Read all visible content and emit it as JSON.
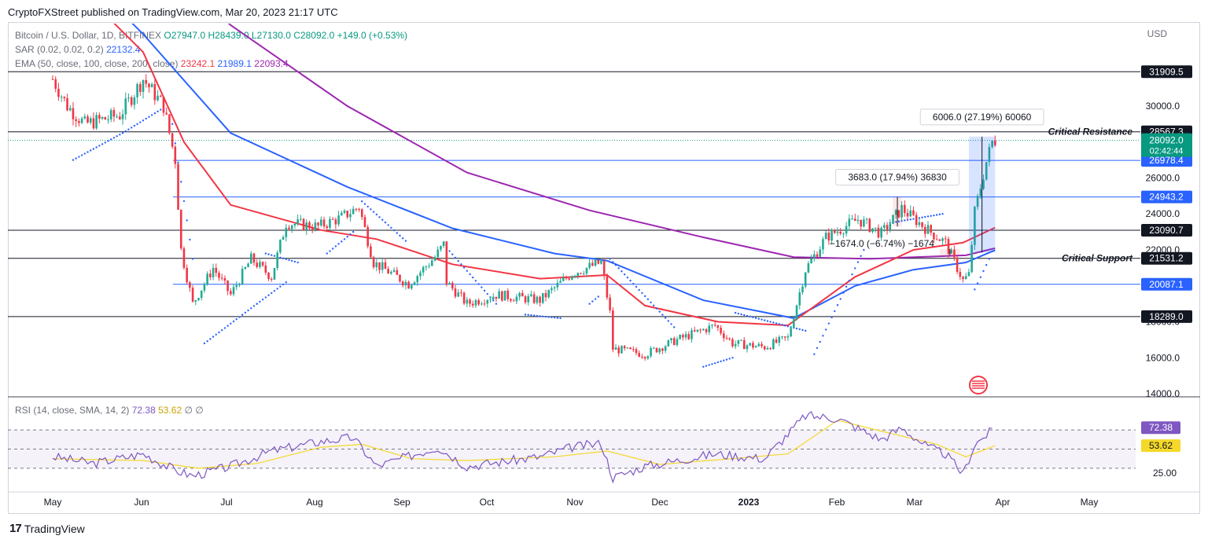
{
  "header": {
    "publisher": "CryptoFXStreet published on TradingView.com, Mar 20, 2023 21:17 UTC"
  },
  "legend": {
    "symbol": "Bitcoin / U.S. Dollar, 1D, BITFINEX",
    "o": "O27947.0",
    "h": "H28439.0",
    "l": "L27130.0",
    "c": "C28092.0",
    "chg": "+149.0 (+0.53%)",
    "sar_label": "SAR (0.02, 0.02, 0.2)",
    "sar_val": "22132.4",
    "ema_label": "EMA (50, close, 100, close, 200, close)",
    "ema50": "23242.1",
    "ema100": "21989.1",
    "ema200": "22093.4",
    "rsi_label": "RSI (14, close, SMA, 14, 2)",
    "rsi_val": "72.38",
    "rsi_sma": "53.62",
    "rsi_tail": "∅ ∅"
  },
  "footer": {
    "brand": "TradingView"
  },
  "colors": {
    "up": "#22ab94",
    "down": "#f23645",
    "ema50": "#f23645",
    "ema100": "#2962ff",
    "ema200": "#9c27b0",
    "sar": "#2962ff",
    "rsi": "#7e57c2",
    "rsi_sma": "#f5d82a",
    "price_badge": "#089981",
    "level_blue": "#2962ff"
  },
  "chart_data": {
    "type": "candlestick",
    "currency": "USD",
    "price_axis": {
      "ticks": [
        14000,
        16000,
        18000,
        20000,
        22000,
        24000,
        26000,
        28000,
        30000
      ],
      "tick_labels": [
        "14000.0",
        "16000.0",
        "18000.0",
        "20000.0",
        "22000.0",
        "24000.0",
        "26000.0",
        "28000.0",
        "30000.0"
      ]
    },
    "time_axis": {
      "labels": [
        "May",
        "Jun",
        "Jul",
        "Aug",
        "Sep",
        "Oct",
        "Nov",
        "Dec",
        "2023",
        "Feb",
        "Mar",
        "Apr",
        "May"
      ]
    },
    "last_price": "28092.0",
    "countdown": "02:42:44",
    "horizontal_levels": [
      {
        "value": 31909.5,
        "label": "31909.5",
        "color": "black"
      },
      {
        "value": 28567.3,
        "label": "28567.3",
        "color": "black",
        "annotation": "Critical Resistance"
      },
      {
        "value": 26978.4,
        "label": "26978.4",
        "color": "blue"
      },
      {
        "value": 24943.2,
        "label": "24943.2",
        "color": "blue"
      },
      {
        "value": 23090.7,
        "label": "23090.7",
        "color": "black"
      },
      {
        "value": 21531.2,
        "label": "21531.2",
        "color": "black",
        "annotation": "Critical Support"
      },
      {
        "value": 20087.1,
        "label": "20087.1",
        "color": "blue"
      },
      {
        "value": 18289.0,
        "label": "18289.0",
        "color": "black"
      }
    ],
    "price_path": [
      [
        "May 1",
        31500
      ],
      [
        "May 6",
        30000
      ],
      [
        "May 12",
        29000
      ],
      [
        "May 24",
        29500
      ],
      [
        "Jun 1",
        31500
      ],
      [
        "Jun 8",
        30000
      ],
      [
        "Jun 12",
        27000
      ],
      [
        "Jun 14",
        22000
      ],
      [
        "Jun 18",
        19000
      ],
      [
        "Jun 25",
        21000
      ],
      [
        "Jul 1",
        19500
      ],
      [
        "Jul 8",
        21500
      ],
      [
        "Jul 15",
        20500
      ],
      [
        "Jul 20",
        23500
      ],
      [
        "Jul 31",
        23300
      ],
      [
        "Aug 8",
        23800
      ],
      [
        "Aug 14",
        24400
      ],
      [
        "Aug 19",
        21300
      ],
      [
        "Aug 31",
        20100
      ],
      [
        "Sep 9",
        21600
      ],
      [
        "Sep 12",
        22300
      ],
      [
        "Sep 13",
        20200
      ],
      [
        "Sep 20",
        19000
      ],
      [
        "Sep 30",
        19500
      ],
      [
        "Oct 15",
        19200
      ],
      [
        "Oct 26",
        20700
      ],
      [
        "Nov 5",
        21300
      ],
      [
        "Nov 8",
        18500
      ],
      [
        "Nov 9",
        16500
      ],
      [
        "Nov 20",
        16200
      ],
      [
        "Dec 1",
        17000
      ],
      [
        "Dec 14",
        17800
      ],
      [
        "Dec 20",
        16800
      ],
      [
        "Dec 31",
        16600
      ],
      [
        "Jan 8",
        17100
      ],
      [
        "Jan 14",
        20900
      ],
      [
        "Jan 21",
        22700
      ],
      [
        "Feb 1",
        23700
      ],
      [
        "Feb 9",
        22900
      ],
      [
        "Feb 16",
        24300
      ],
      [
        "Feb 25",
        23100
      ],
      [
        "Mar 3",
        22400
      ],
      [
        "Mar 9",
        20300
      ],
      [
        "Mar 11",
        20600
      ],
      [
        "Mar 13",
        24100
      ],
      [
        "Mar 17",
        26900
      ],
      [
        "Mar 19",
        28000
      ],
      [
        "Mar 20",
        28092
      ]
    ],
    "ema50": [
      [
        "May 1",
        38000
      ],
      [
        "Jun 1",
        33000
      ],
      [
        "Jun 15",
        28000
      ],
      [
        "Jul 1",
        24500
      ],
      [
        "Aug 1",
        23100
      ],
      [
        "Aug 20",
        22600
      ],
      [
        "Sep 15",
        21200
      ],
      [
        "Oct 15",
        20400
      ],
      [
        "Nov 7",
        20600
      ],
      [
        "Nov 20",
        18900
      ],
      [
        "Dec 15",
        18000
      ],
      [
        "Jan 8",
        17800
      ],
      [
        "Jan 31",
        20500
      ],
      [
        "Feb 20",
        22000
      ],
      [
        "Mar 9",
        22400
      ],
      [
        "Mar 20",
        23242
      ]
    ],
    "ema100": [
      [
        "May 1",
        39000
      ],
      [
        "Jun 1",
        34000
      ],
      [
        "Jul 1",
        28500
      ],
      [
        "Aug 10",
        25500
      ],
      [
        "Sep 15",
        23200
      ],
      [
        "Oct 20",
        21800
      ],
      [
        "Nov 7",
        21400
      ],
      [
        "Dec 10",
        19200
      ],
      [
        "Jan 10",
        18200
      ],
      [
        "Jan 31",
        20000
      ],
      [
        "Feb 20",
        20900
      ],
      [
        "Mar 10",
        21300
      ],
      [
        "Mar 20",
        21989
      ]
    ],
    "ema200": [
      [
        "May 1",
        43000
      ],
      [
        "Jun 1",
        39000
      ],
      [
        "Jul 1",
        34500
      ],
      [
        "Aug 10",
        30000
      ],
      [
        "Sep 20",
        26300
      ],
      [
        "Nov 1",
        24200
      ],
      [
        "Dec 10",
        22700
      ],
      [
        "Jan 10",
        21600
      ],
      [
        "Feb 5",
        21500
      ],
      [
        "Mar 10",
        21700
      ],
      [
        "Mar 20",
        22093
      ]
    ],
    "sar_segments": [
      [
        [
          "May 8",
          27000
        ],
        [
          "May 25",
          28500
        ],
        [
          "Jun 7",
          29800
        ]
      ],
      [
        [
          "Jun 11",
          29000
        ],
        [
          "Jun 18",
          21500
        ]
      ],
      [
        [
          "Jun 22",
          16800
        ],
        [
          "Jul 10",
          19000
        ],
        [
          "Jul 20",
          20200
        ]
      ],
      [
        [
          "Jul 13",
          21800
        ],
        [
          "Jul 24",
          21300
        ]
      ],
      [
        [
          "Aug 3",
          21800
        ],
        [
          "Aug 12",
          23000
        ]
      ],
      [
        [
          "Aug 15",
          24700
        ],
        [
          "Aug 30",
          22500
        ]
      ],
      [
        [
          "Sep 12",
          22300
        ],
        [
          "Sep 30",
          19000
        ]
      ],
      [
        [
          "Oct 10",
          18400
        ],
        [
          "Oct 22",
          18200
        ]
      ],
      [
        [
          "Nov 1",
          19000
        ],
        [
          "Nov 4",
          19400
        ]
      ],
      [
        [
          "Nov 8",
          21500
        ],
        [
          "Nov 30",
          17700
        ]
      ],
      [
        [
          "Dec 10",
          15500
        ],
        [
          "Dec 20",
          16000
        ]
      ],
      [
        [
          "Dec 21",
          18500
        ],
        [
          "Jan 14",
          17500
        ]
      ],
      [
        [
          "Jan 17",
          16200
        ],
        [
          "Feb 3",
          22000
        ]
      ],
      [
        [
          "Feb 12",
          23500
        ],
        [
          "Mar 2",
          24000
        ]
      ],
      [
        [
          "Mar 13",
          19800
        ],
        [
          "Mar 18",
          21500
        ]
      ]
    ],
    "measures": [
      {
        "label": "6006.0 (27.19%) 60060",
        "from": [
          "Mar 11",
          21850
        ],
        "to": [
          "Mar 20",
          28300
        ]
      },
      {
        "label": "3683.0 (17.94%) 36830",
        "from": [
          "Feb 13",
          24950
        ],
        "to": [
          "Feb 16",
          23300
        ]
      },
      {
        "label": "−1674.0 (−6.74%) −1674",
        "from": [
          "Mar 1",
          22050
        ],
        "to": [
          "Mar 8",
          21700
        ]
      }
    ],
    "rsi": {
      "levels": [
        70,
        50,
        30
      ],
      "tick_label": "25.00",
      "last": "72.38",
      "sma_last": "53.62",
      "rsi_path": [
        [
          "May 1",
          42
        ],
        [
          "May 15",
          35
        ],
        [
          "Jun 1",
          45
        ],
        [
          "Jun 12",
          28
        ],
        [
          "Jun 18",
          22
        ],
        [
          "Jul 1",
          32
        ],
        [
          "Jul 15",
          48
        ],
        [
          "Aug 1",
          58
        ],
        [
          "Aug 12",
          62
        ],
        [
          "Aug 20",
          32
        ],
        [
          "Sep 10",
          52
        ],
        [
          "Sep 20",
          32
        ],
        [
          "Oct 15",
          42
        ],
        [
          "Oct 26",
          52
        ],
        [
          "Nov 5",
          56
        ],
        [
          "Nov 9",
          20
        ],
        [
          "Nov 20",
          32
        ],
        [
          "Dec 14",
          45
        ],
        [
          "Dec 31",
          40
        ],
        [
          "Jan 14",
          85
        ],
        [
          "Jan 25",
          82
        ],
        [
          "Feb 9",
          60
        ],
        [
          "Feb 16",
          72
        ],
        [
          "Feb 25",
          52
        ],
        [
          "Mar 3",
          45
        ],
        [
          "Mar 9",
          24
        ],
        [
          "Mar 13",
          55
        ],
        [
          "Mar 20",
          72
        ]
      ],
      "sma_path": [
        [
          "May 1",
          40
        ],
        [
          "Jun 1",
          38
        ],
        [
          "Jun 20",
          30
        ],
        [
          "Jul 10",
          35
        ],
        [
          "Aug 1",
          52
        ],
        [
          "Aug 15",
          55
        ],
        [
          "Sep 1",
          40
        ],
        [
          "Sep 20",
          38
        ],
        [
          "Oct 20",
          42
        ],
        [
          "Nov 7",
          48
        ],
        [
          "Nov 25",
          34
        ],
        [
          "Dec 20",
          40
        ],
        [
          "Jan 8",
          45
        ],
        [
          "Jan 25",
          80
        ],
        [
          "Feb 10",
          68
        ],
        [
          "Feb 28",
          55
        ],
        [
          "Mar 10",
          42
        ],
        [
          "Mar 20",
          53.6
        ]
      ]
    }
  }
}
